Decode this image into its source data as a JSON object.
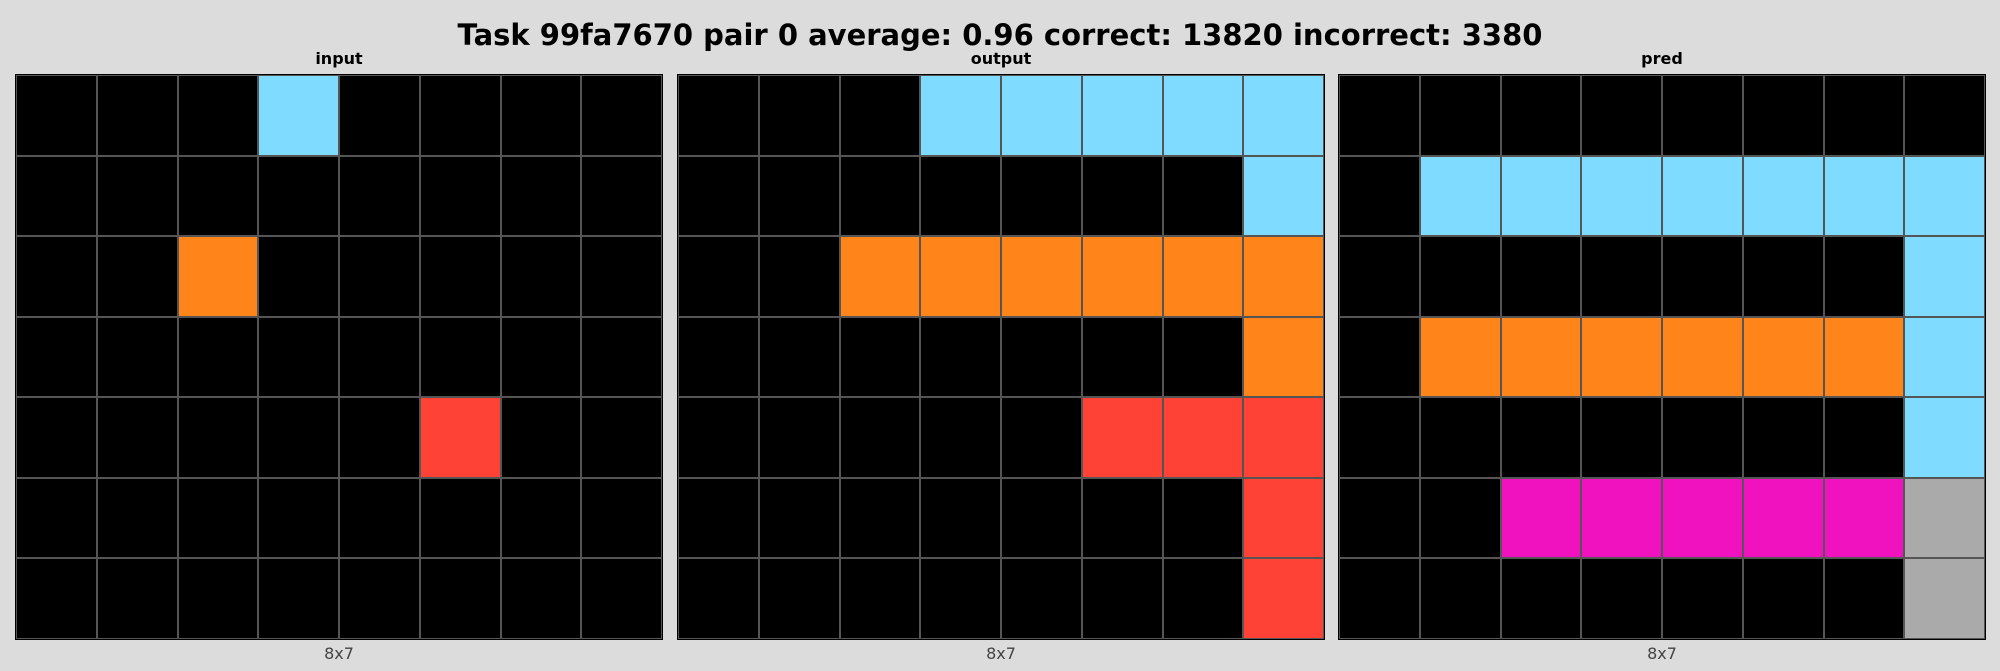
{
  "title": "Task 99fa7670 pair 0 average: 0.96 correct: 13820 incorrect: 3380",
  "palette": {
    "0": "#000000",
    "2": "#ff4136",
    "6": "#f012be",
    "7": "#ff851b",
    "8": "#7fdbff",
    "9": "#aaaaaa"
  },
  "panels": [
    {
      "name": "input",
      "title": "input",
      "size_label": "8x7",
      "grid": [
        [
          0,
          0,
          0,
          8,
          0,
          0,
          0,
          0
        ],
        [
          0,
          0,
          0,
          0,
          0,
          0,
          0,
          0
        ],
        [
          0,
          0,
          7,
          0,
          0,
          0,
          0,
          0
        ],
        [
          0,
          0,
          0,
          0,
          0,
          0,
          0,
          0
        ],
        [
          0,
          0,
          0,
          0,
          0,
          2,
          0,
          0
        ],
        [
          0,
          0,
          0,
          0,
          0,
          0,
          0,
          0
        ],
        [
          0,
          0,
          0,
          0,
          0,
          0,
          0,
          0
        ]
      ]
    },
    {
      "name": "output",
      "title": "output",
      "size_label": "8x7",
      "grid": [
        [
          0,
          0,
          0,
          8,
          8,
          8,
          8,
          8
        ],
        [
          0,
          0,
          0,
          0,
          0,
          0,
          0,
          8
        ],
        [
          0,
          0,
          7,
          7,
          7,
          7,
          7,
          7
        ],
        [
          0,
          0,
          0,
          0,
          0,
          0,
          0,
          7
        ],
        [
          0,
          0,
          0,
          0,
          0,
          2,
          2,
          2
        ],
        [
          0,
          0,
          0,
          0,
          0,
          0,
          0,
          2
        ],
        [
          0,
          0,
          0,
          0,
          0,
          0,
          0,
          2
        ]
      ]
    },
    {
      "name": "pred",
      "title": "pred",
      "size_label": "8x7",
      "grid": [
        [
          0,
          0,
          0,
          0,
          0,
          0,
          0,
          0
        ],
        [
          0,
          8,
          8,
          8,
          8,
          8,
          8,
          8
        ],
        [
          0,
          0,
          0,
          0,
          0,
          0,
          0,
          8
        ],
        [
          0,
          7,
          7,
          7,
          7,
          7,
          7,
          8
        ],
        [
          0,
          0,
          0,
          0,
          0,
          0,
          0,
          8
        ],
        [
          0,
          0,
          6,
          6,
          6,
          6,
          6,
          9
        ],
        [
          0,
          0,
          0,
          0,
          0,
          0,
          0,
          9
        ]
      ]
    }
  ]
}
